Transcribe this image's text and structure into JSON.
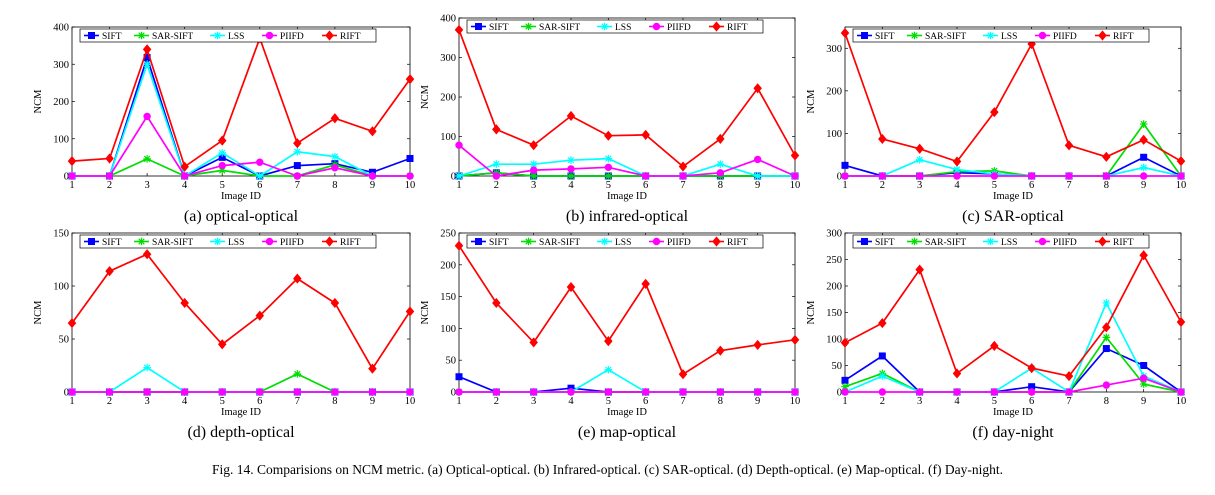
{
  "caption": "Fig. 14.   Comparisions on NCM metric. (a) Optical-optical. (b) Infrared-optical. (c) SAR-optical. (d) Depth-optical. (e) Map-optical. (f) Day-night.",
  "legend": [
    "SIFT",
    "SAR-SIFT",
    "LSS",
    "PIIFD",
    "RIFT"
  ],
  "colors": {
    "SIFT": "#0000ff",
    "SAR-SIFT": "#00dd00",
    "LSS": "#00ffff",
    "PIIFD": "#ff00ff",
    "RIFT": "#ff0000"
  },
  "markers": {
    "SIFT": "square",
    "SAR-SIFT": "star",
    "LSS": "star",
    "PIIFD": "circle",
    "RIFT": "diamond"
  },
  "chart_data": [
    {
      "type": "line",
      "title": "(a) optical-optical",
      "xlabel": "Image ID",
      "ylabel": "NCM",
      "x": [
        1,
        2,
        3,
        4,
        5,
        6,
        7,
        8,
        9,
        10
      ],
      "xlim": [
        1,
        10
      ],
      "ylim": [
        0,
        400
      ],
      "yticks": [
        0,
        100,
        200,
        300,
        400
      ],
      "series": [
        {
          "name": "SIFT",
          "values": [
            0,
            0,
            318,
            0,
            50,
            0,
            28,
            33,
            10,
            47
          ]
        },
        {
          "name": "SAR-SIFT",
          "values": [
            0,
            0,
            46,
            0,
            15,
            0,
            0,
            30,
            0,
            0
          ]
        },
        {
          "name": "LSS",
          "values": [
            0,
            0,
            300,
            0,
            62,
            0,
            65,
            52,
            0,
            0
          ]
        },
        {
          "name": "PIIFD",
          "values": [
            0,
            0,
            160,
            0,
            28,
            37,
            0,
            22,
            0,
            0
          ]
        },
        {
          "name": "RIFT",
          "values": [
            40,
            47,
            340,
            25,
            95,
            370,
            88,
            155,
            120,
            260
          ]
        }
      ]
    },
    {
      "type": "line",
      "title": "(b) infrared-optical",
      "xlabel": "Image ID",
      "ylabel": "NCM",
      "x": [
        1,
        2,
        3,
        4,
        5,
        6,
        7,
        8,
        9,
        10
      ],
      "xlim": [
        1,
        10
      ],
      "ylim": [
        0,
        400
      ],
      "yticks": [
        0,
        100,
        200,
        300,
        400
      ],
      "series": [
        {
          "name": "SIFT",
          "values": [
            0,
            8,
            0,
            0,
            0,
            0,
            0,
            0,
            0,
            0
          ]
        },
        {
          "name": "SAR-SIFT",
          "values": [
            0,
            8,
            0,
            0,
            0,
            0,
            0,
            0,
            0,
            0
          ]
        },
        {
          "name": "LSS",
          "values": [
            0,
            30,
            30,
            40,
            44,
            0,
            0,
            30,
            0,
            0
          ]
        },
        {
          "name": "PIIFD",
          "values": [
            78,
            0,
            15,
            18,
            22,
            0,
            0,
            8,
            42,
            0
          ]
        },
        {
          "name": "RIFT",
          "values": [
            370,
            118,
            78,
            152,
            102,
            104,
            24,
            94,
            222,
            52
          ]
        }
      ]
    },
    {
      "type": "line",
      "title": "(c) SAR-optical",
      "xlabel": "Image ID",
      "ylabel": "NCM",
      "x": [
        1,
        2,
        3,
        4,
        5,
        6,
        7,
        8,
        9,
        10
      ],
      "xlim": [
        1,
        10
      ],
      "ylim": [
        0,
        350
      ],
      "yticks": [
        0,
        100,
        200,
        300
      ],
      "series": [
        {
          "name": "SIFT",
          "values": [
            25,
            0,
            0,
            8,
            5,
            0,
            0,
            0,
            44,
            0
          ]
        },
        {
          "name": "SAR-SIFT",
          "values": [
            0,
            0,
            0,
            10,
            12,
            0,
            0,
            0,
            122,
            0
          ]
        },
        {
          "name": "LSS",
          "values": [
            0,
            0,
            38,
            15,
            5,
            0,
            0,
            0,
            20,
            0
          ]
        },
        {
          "name": "PIIFD",
          "values": [
            0,
            0,
            0,
            0,
            0,
            0,
            0,
            0,
            0,
            0
          ]
        },
        {
          "name": "RIFT",
          "values": [
            336,
            87,
            64,
            34,
            150,
            310,
            72,
            45,
            85,
            35
          ]
        }
      ]
    },
    {
      "type": "line",
      "title": "(d) depth-optical",
      "xlabel": "Image ID",
      "ylabel": "NCM",
      "x": [
        1,
        2,
        3,
        4,
        5,
        6,
        7,
        8,
        9,
        10
      ],
      "xlim": [
        1,
        10
      ],
      "ylim": [
        0,
        150
      ],
      "yticks": [
        0,
        50,
        100,
        150
      ],
      "series": [
        {
          "name": "SIFT",
          "values": [
            0,
            0,
            0,
            0,
            0,
            0,
            0,
            0,
            0,
            0
          ]
        },
        {
          "name": "SAR-SIFT",
          "values": [
            0,
            0,
            0,
            0,
            0,
            0,
            17,
            0,
            0,
            0
          ]
        },
        {
          "name": "LSS",
          "values": [
            0,
            0,
            23,
            0,
            0,
            0,
            0,
            0,
            0,
            0
          ]
        },
        {
          "name": "PIIFD",
          "values": [
            0,
            0,
            0,
            0,
            0,
            0,
            0,
            0,
            0,
            0
          ]
        },
        {
          "name": "RIFT",
          "values": [
            65,
            114,
            130,
            84,
            45,
            72,
            107,
            84,
            22,
            76
          ]
        }
      ]
    },
    {
      "type": "line",
      "title": "(e) map-optical",
      "xlabel": "Image ID",
      "ylabel": "NCM",
      "x": [
        1,
        2,
        3,
        4,
        5,
        6,
        7,
        8,
        9,
        10
      ],
      "xlim": [
        1,
        10
      ],
      "ylim": [
        0,
        250
      ],
      "yticks": [
        0,
        50,
        100,
        150,
        200,
        250
      ],
      "series": [
        {
          "name": "SIFT",
          "values": [
            24,
            0,
            0,
            6,
            0,
            0,
            0,
            0,
            0,
            0
          ]
        },
        {
          "name": "SAR-SIFT",
          "values": [
            0,
            0,
            0,
            0,
            0,
            0,
            0,
            0,
            0,
            0
          ]
        },
        {
          "name": "LSS",
          "values": [
            0,
            0,
            0,
            0,
            35,
            0,
            0,
            0,
            0,
            0
          ]
        },
        {
          "name": "PIIFD",
          "values": [
            0,
            0,
            0,
            0,
            0,
            0,
            0,
            0,
            0,
            0
          ]
        },
        {
          "name": "RIFT",
          "values": [
            230,
            140,
            78,
            165,
            80,
            170,
            28,
            65,
            74,
            82
          ]
        }
      ]
    },
    {
      "type": "line",
      "title": "(f) day-night",
      "xlabel": "Image ID",
      "ylabel": "NCM",
      "x": [
        1,
        2,
        3,
        4,
        5,
        6,
        7,
        8,
        9,
        10
      ],
      "xlim": [
        1,
        10
      ],
      "ylim": [
        0,
        300
      ],
      "yticks": [
        0,
        50,
        100,
        150,
        200,
        250,
        300
      ],
      "series": [
        {
          "name": "SIFT",
          "values": [
            22,
            68,
            0,
            0,
            0,
            10,
            0,
            82,
            50,
            0
          ]
        },
        {
          "name": "SAR-SIFT",
          "values": [
            10,
            35,
            0,
            0,
            0,
            0,
            0,
            103,
            15,
            0
          ]
        },
        {
          "name": "LSS",
          "values": [
            0,
            30,
            0,
            0,
            0,
            45,
            0,
            168,
            30,
            0
          ]
        },
        {
          "name": "PIIFD",
          "values": [
            0,
            0,
            0,
            0,
            0,
            0,
            0,
            13,
            26,
            0
          ]
        },
        {
          "name": "RIFT",
          "values": [
            93,
            130,
            231,
            35,
            87,
            45,
            30,
            122,
            258,
            132
          ]
        }
      ]
    }
  ]
}
